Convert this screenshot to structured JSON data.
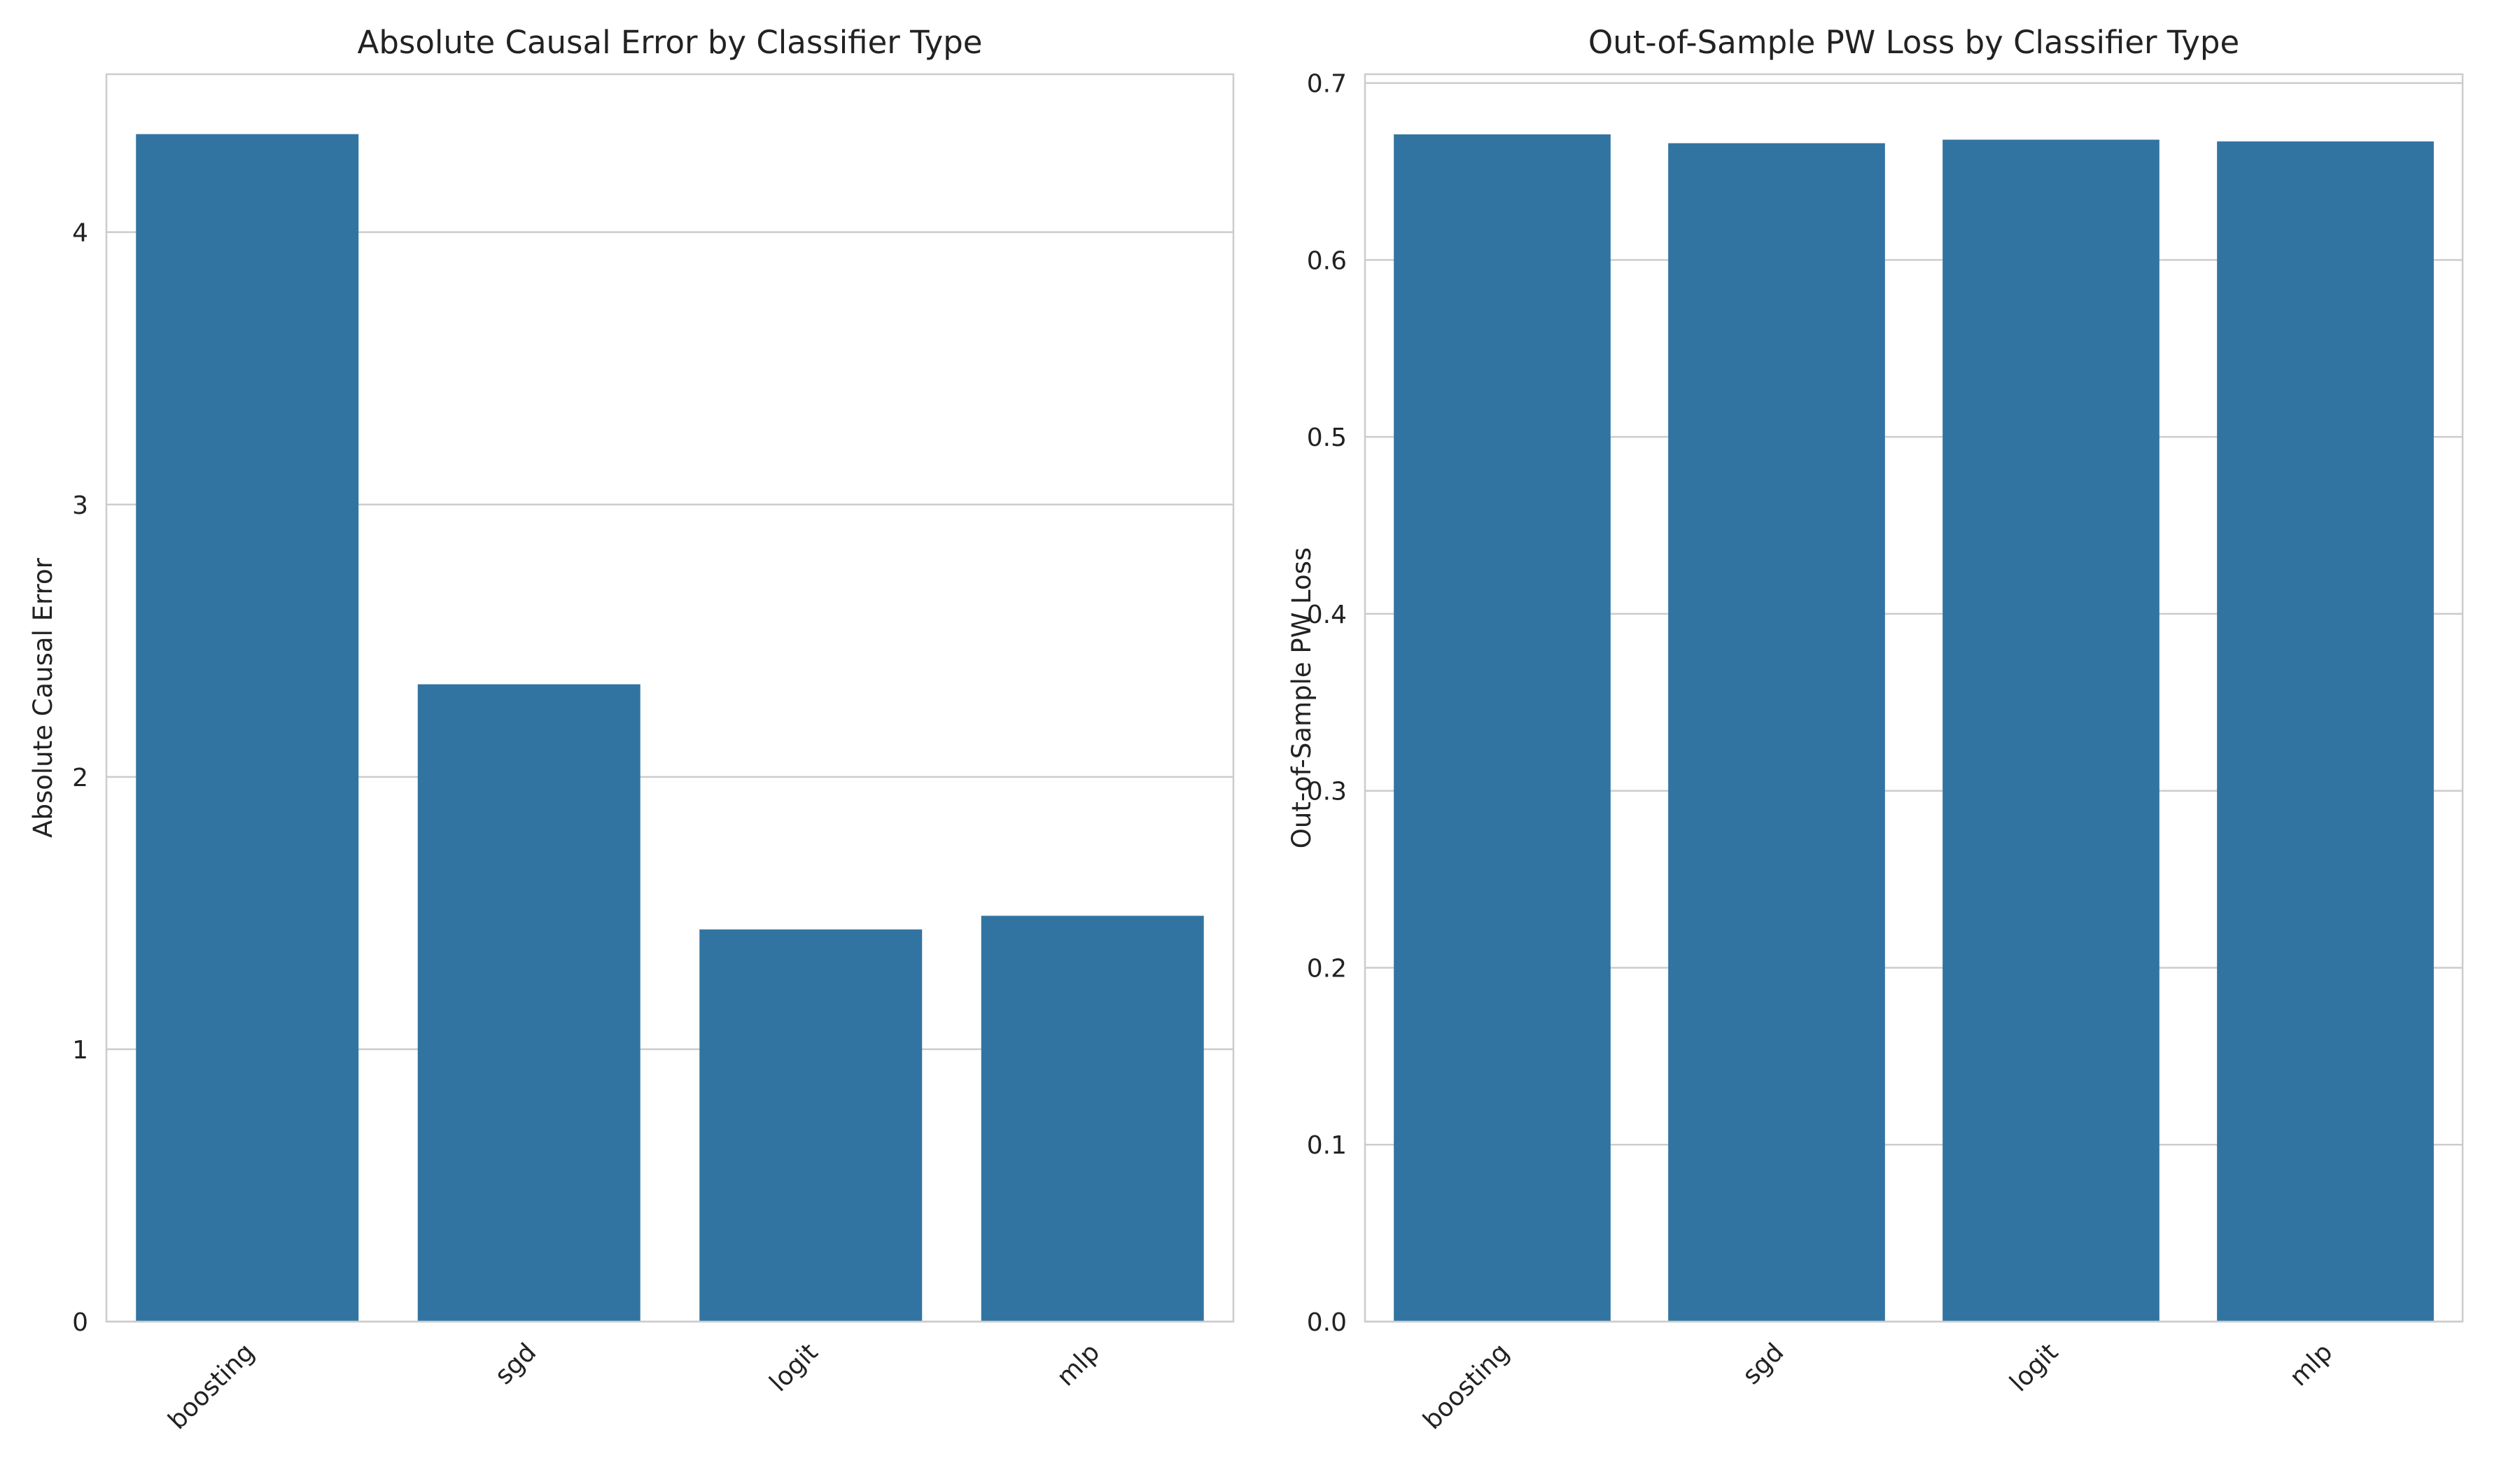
{
  "chart_data": [
    {
      "type": "bar",
      "title": "Absolute Causal Error by Classifier Type",
      "xlabel": "",
      "ylabel": "Absolute Causal Error",
      "categories": [
        "boosting",
        "sgd",
        "logit",
        "mlp"
      ],
      "values": [
        4.36,
        2.34,
        1.44,
        1.49
      ],
      "ylim": [
        0,
        4.58
      ],
      "yticks": [
        0,
        1,
        2,
        3,
        4
      ],
      "tick_labels": [
        "0",
        "1",
        "2",
        "3",
        "4"
      ],
      "grid": true,
      "bar_color": "#3274a1"
    },
    {
      "type": "bar",
      "title": "Out-of-Sample PW Loss by Classifier Type",
      "xlabel": "",
      "ylabel": "Out-of-Sample PW Loss",
      "categories": [
        "boosting",
        "sgd",
        "logit",
        "mlp"
      ],
      "values": [
        0.671,
        0.666,
        0.668,
        0.667
      ],
      "ylim": [
        0,
        0.705
      ],
      "yticks": [
        0,
        0.1,
        0.2,
        0.3,
        0.4,
        0.5,
        0.6,
        0.7
      ],
      "tick_labels": [
        "0.0",
        "0.1",
        "0.2",
        "0.3",
        "0.4",
        "0.5",
        "0.6",
        "0.7"
      ],
      "grid": true,
      "bar_color": "#3274a1"
    }
  ]
}
